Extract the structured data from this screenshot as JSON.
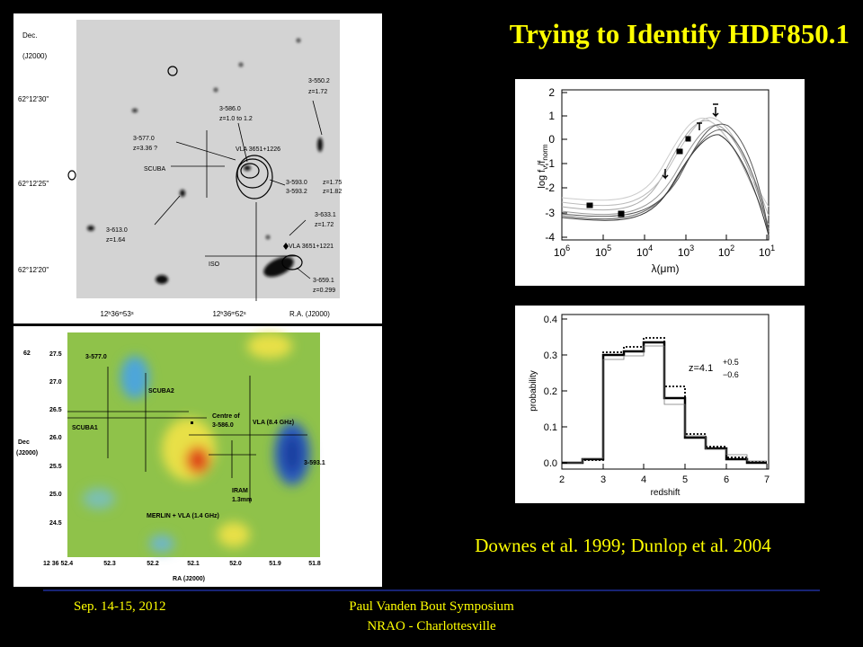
{
  "title": "Trying to Identify HDF850.1",
  "citation": "Downes et al. 1999; Dunlop et al. 2004",
  "footer": {
    "date": "Sep. 14-15, 2012",
    "event": "Paul Vanden Bout Symposium",
    "location": "NRAO - Charlottesville"
  },
  "optical_panel": {
    "dec_label": "Dec.",
    "epoch_label": "(J2000)",
    "dec_ticks": [
      "62°12'30\"",
      "62°12'25\"",
      "62°12'20\""
    ],
    "ra_ticks": [
      "12ʰ36ᵐ53ˢ",
      "12ʰ36ᵐ52ˢ"
    ],
    "ra_label": "R.A. (J2000)",
    "sources": [
      "3-550.2",
      "z=1.72",
      "3-586.0",
      "z=1.0 to 1.2",
      "3-577.0",
      "z=3.36 ?",
      "VLA 3651+1226",
      "SCUBA",
      "3-593.0",
      "z=1.75",
      "3-593.2",
      "z=1.82",
      "3-633.1",
      "z=1.72",
      "3-613.0",
      "z=1.64",
      "VLA 3651+1221",
      "ISO",
      "3-659.1",
      "z=0.299"
    ]
  },
  "radio_map": {
    "dec_ticks": [
      "62",
      "27.5",
      "27.0",
      "26.5",
      "26.0",
      "25.5",
      "25.0",
      "24.5"
    ],
    "dec_label": "Dec",
    "epoch_label": "(J2000)",
    "ra_ticks": [
      "12 36 52.4",
      "52.3",
      "52.2",
      "52.1",
      "52.0",
      "51.9",
      "51.8"
    ],
    "ra_label": "RA (J2000)",
    "labels": [
      "3-577.0",
      "SCUBA2",
      "SCUBA1",
      "Centre of",
      "3-586.0",
      "VLA (8.4 GHz)",
      "3-593.1",
      "IRAM",
      "1.3mm",
      "MERLIN + VLA (1.4 GHz)"
    ]
  },
  "sed_plot": {
    "y_label": [
      "log f",
      "ν",
      "/f",
      "norm"
    ],
    "y_ticks": [
      "2",
      "1",
      "0",
      "-1",
      "-2",
      "-3",
      "-4"
    ],
    "x_ticks": [
      {
        "base": "10",
        "exp": "6"
      },
      {
        "base": "10",
        "exp": "5"
      },
      {
        "base": "10",
        "exp": "4"
      },
      {
        "base": "10",
        "exp": "3"
      },
      {
        "base": "10",
        "exp": "2"
      },
      {
        "base": "10",
        "exp": "1"
      }
    ],
    "x_label": "λ(μm)"
  },
  "redshift_plot": {
    "y_label": "probability",
    "y_ticks": [
      "0.0",
      "0.1",
      "0.2",
      "0.3",
      "0.4"
    ],
    "x_ticks": [
      "2",
      "3",
      "4",
      "5",
      "6",
      "7"
    ],
    "x_label": "redshift",
    "estimate": {
      "value": "z=4.1",
      "upper": "+0.5",
      "lower": "−0.6"
    }
  }
}
